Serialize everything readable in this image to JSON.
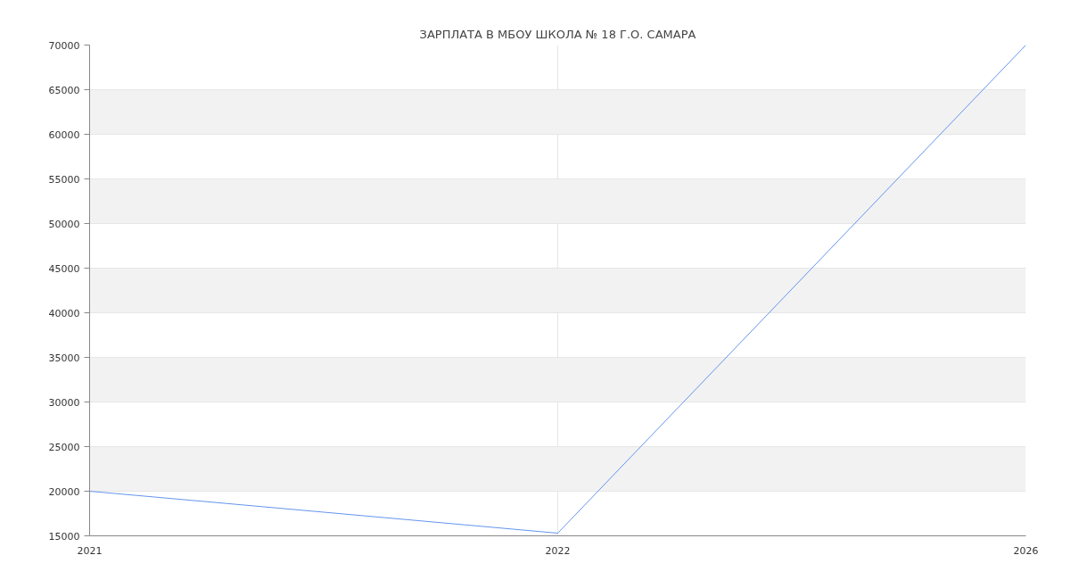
{
  "chart_data": {
    "type": "line",
    "title": "ЗАРПЛАТА В МБОУ ШКОЛА № 18 Г.О. САМАРА",
    "categories": [
      "2021",
      "2022",
      "2026"
    ],
    "series": [
      {
        "color": "#6495ed",
        "values": [
          20000,
          15300,
          70000
        ]
      }
    ],
    "ylim": [
      15000,
      70000
    ],
    "yticks": [
      15000,
      20000,
      25000,
      30000,
      35000,
      40000,
      45000,
      50000,
      55000,
      60000,
      65000,
      70000
    ],
    "grid": true
  }
}
